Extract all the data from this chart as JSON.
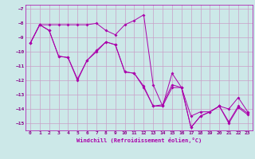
{
  "xlabel": "Windchill (Refroidissement éolien,°C)",
  "background_color": "#cce8e8",
  "grid_color": "#c8a0c8",
  "line_color": "#aa00aa",
  "xlim": [
    -0.5,
    23.5
  ],
  "ylim": [
    -15.5,
    -6.7
  ],
  "yticks": [
    -7,
    -8,
    -9,
    -10,
    -11,
    -12,
    -13,
    -14,
    -15
  ],
  "xticks": [
    0,
    1,
    2,
    3,
    4,
    5,
    6,
    7,
    8,
    9,
    10,
    11,
    12,
    13,
    14,
    15,
    16,
    17,
    18,
    19,
    20,
    21,
    22,
    23
  ],
  "series": [
    [
      -9.4,
      -8.1,
      -8.1,
      -8.1,
      -8.1,
      -8.1,
      -8.1,
      -8.0,
      -8.5,
      -8.8,
      -8.1,
      -7.8,
      -7.4,
      -12.3,
      -13.8,
      -12.5,
      -12.5,
      -14.5,
      -14.2,
      -14.2,
      -13.8,
      -14.0,
      -13.2,
      -14.2
    ],
    [
      -9.4,
      -8.1,
      -8.5,
      -10.3,
      -10.4,
      -12.0,
      -10.6,
      -10.0,
      -9.3,
      -9.5,
      -11.4,
      -11.5,
      -12.5,
      -13.8,
      -13.8,
      -11.5,
      -12.5,
      -15.3,
      -14.5,
      -14.2,
      -13.8,
      -14.9,
      -13.8,
      -14.3
    ],
    [
      -9.4,
      -8.1,
      -8.5,
      -10.3,
      -10.4,
      -11.9,
      -10.6,
      -9.9,
      -9.3,
      -9.5,
      -11.4,
      -11.5,
      -12.4,
      -13.8,
      -13.7,
      -12.3,
      -12.5,
      -15.3,
      -14.5,
      -14.2,
      -13.8,
      -15.0,
      -13.9,
      -14.4
    ]
  ]
}
